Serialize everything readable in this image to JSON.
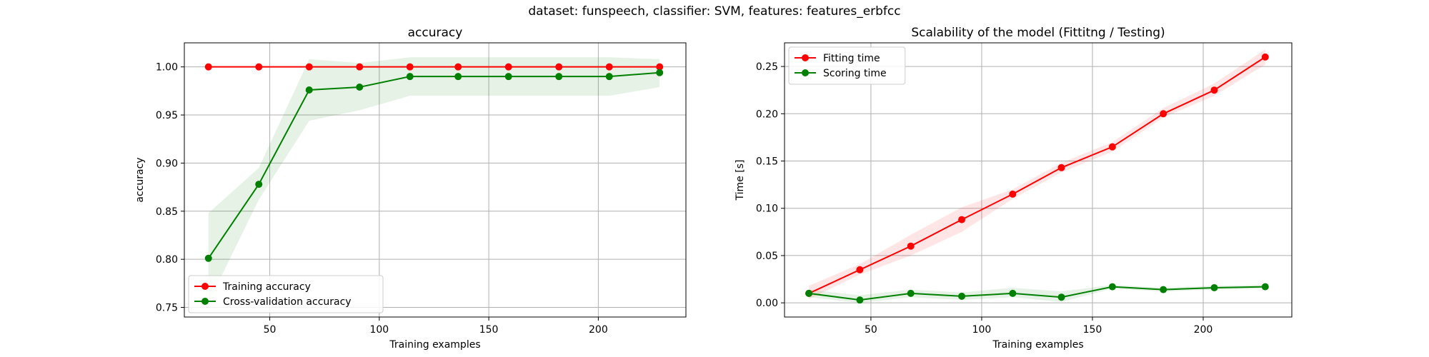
{
  "figure": {
    "suptitle": "dataset: funspeech, classifier: SVM, features: features_erbfcc"
  },
  "colors": {
    "red": "#ff0000",
    "green": "#008000",
    "red_band": "#ff0000",
    "green_band": "#008000",
    "grid": "#b0b0b0"
  },
  "chart_data": [
    {
      "type": "line",
      "title": "accuracy",
      "xlabel": "Training examples",
      "ylabel": "accuracy",
      "xlim": [
        11,
        240
      ],
      "ylim": [
        0.74,
        1.025
      ],
      "xticks": [
        50,
        100,
        150,
        200
      ],
      "yticks": [
        0.75,
        0.8,
        0.85,
        0.9,
        0.95,
        1.0
      ],
      "ytick_format": 2,
      "grid": true,
      "legend": "lower left",
      "x": [
        22,
        45,
        68,
        91,
        114,
        136,
        159,
        182,
        205,
        228
      ],
      "series": [
        {
          "name": "Training accuracy",
          "color": "red",
          "values": [
            1.0,
            1.0,
            1.0,
            1.0,
            1.0,
            1.0,
            1.0,
            1.0,
            1.0,
            1.0
          ],
          "band_lower": [
            1.0,
            1.0,
            1.0,
            1.0,
            1.0,
            1.0,
            1.0,
            1.0,
            1.0,
            1.0
          ],
          "band_upper": [
            1.0,
            1.0,
            1.0,
            1.0,
            1.0,
            1.0,
            1.0,
            1.0,
            1.0,
            1.0
          ]
        },
        {
          "name": "Cross-validation accuracy",
          "color": "green",
          "values": [
            0.801,
            0.878,
            0.976,
            0.979,
            0.99,
            0.99,
            0.99,
            0.99,
            0.99,
            0.994
          ],
          "band_lower": [
            0.755,
            0.862,
            0.944,
            0.955,
            0.97,
            0.97,
            0.97,
            0.97,
            0.97,
            0.979
          ],
          "band_upper": [
            0.848,
            0.895,
            1.008,
            1.004,
            1.01,
            1.01,
            1.01,
            1.01,
            1.01,
            1.008
          ]
        }
      ]
    },
    {
      "type": "line",
      "title": "Scalability of the model (Fittitng / Testing)",
      "xlabel": "Training examples",
      "ylabel": "Time [s]",
      "xlim": [
        11,
        240
      ],
      "ylim": [
        -0.015,
        0.275
      ],
      "xticks": [
        50,
        100,
        150,
        200
      ],
      "yticks": [
        0.0,
        0.05,
        0.1,
        0.15,
        0.2,
        0.25
      ],
      "ytick_format": 2,
      "grid": true,
      "legend": "upper left",
      "x": [
        22,
        45,
        68,
        91,
        114,
        136,
        159,
        182,
        205,
        228
      ],
      "series": [
        {
          "name": "Fitting time",
          "color": "red",
          "values": [
            0.01,
            0.035,
            0.06,
            0.088,
            0.115,
            0.143,
            0.165,
            0.2,
            0.225,
            0.26
          ],
          "band_lower": [
            0.004,
            0.03,
            0.05,
            0.075,
            0.11,
            0.138,
            0.16,
            0.196,
            0.219,
            0.252
          ],
          "band_upper": [
            0.018,
            0.041,
            0.072,
            0.101,
            0.12,
            0.148,
            0.17,
            0.206,
            0.232,
            0.268
          ]
        },
        {
          "name": "Scoring time",
          "color": "green",
          "values": [
            0.01,
            0.003,
            0.01,
            0.007,
            0.01,
            0.006,
            0.017,
            0.014,
            0.016,
            0.017
          ],
          "band_lower": [
            0.006,
            0.0,
            0.006,
            0.003,
            0.006,
            0.001,
            0.015,
            0.012,
            0.014,
            0.015
          ],
          "band_upper": [
            0.014,
            0.008,
            0.014,
            0.011,
            0.016,
            0.012,
            0.019,
            0.016,
            0.018,
            0.019
          ]
        }
      ]
    }
  ]
}
